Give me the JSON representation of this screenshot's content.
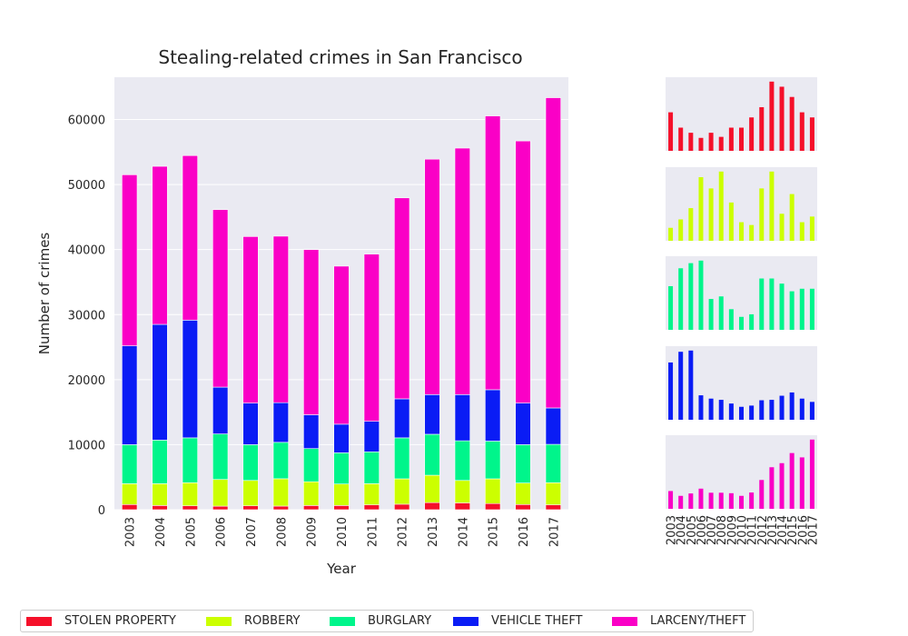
{
  "chart_data": {
    "type": "bar",
    "stacked": true,
    "title": "Stealing-related crimes in San Francisco",
    "xlabel": "Year",
    "ylabel": "Number of crimes",
    "ylim": [
      0,
      66500
    ],
    "yticks": [
      0,
      10000,
      20000,
      30000,
      40000,
      50000,
      60000
    ],
    "categories": [
      "2003",
      "2004",
      "2005",
      "2006",
      "2007",
      "2008",
      "2009",
      "2010",
      "2011",
      "2012",
      "2013",
      "2014",
      "2015",
      "2016",
      "2017"
    ],
    "series": [
      {
        "name": "STOLEN PROPERTY",
        "color": "#f5102a",
        "values": [
          800,
          650,
          600,
          550,
          600,
          560,
          650,
          650,
          750,
          850,
          1100,
          1050,
          950,
          800,
          750
        ]
      },
      {
        "name": "ROBBERY",
        "color": "#ccff00",
        "values": [
          3200,
          3350,
          3550,
          4100,
          3900,
          4200,
          3650,
          3300,
          3250,
          3900,
          4200,
          3450,
          3800,
          3300,
          3400
        ]
      },
      {
        "name": "BURGLARY",
        "color": "#00f58b",
        "values": [
          6000,
          6700,
          6900,
          7000,
          5500,
          5600,
          5100,
          4800,
          4900,
          6300,
          6300,
          6100,
          5800,
          5900,
          5900
        ]
      },
      {
        "name": "VEHICLE THEFT",
        "color": "#0a1cf5",
        "values": [
          15200,
          17800,
          18100,
          7200,
          6400,
          6100,
          5200,
          4400,
          4700,
          6000,
          6100,
          7100,
          7900,
          6400,
          5600
        ]
      },
      {
        "name": "LARCENY/THEFT",
        "color": "#fa00c6",
        "values": [
          26300,
          24300,
          25300,
          27300,
          25600,
          25600,
          25400,
          24300,
          25700,
          30900,
          36200,
          37900,
          42100,
          40300,
          47700
        ]
      }
    ]
  }
}
